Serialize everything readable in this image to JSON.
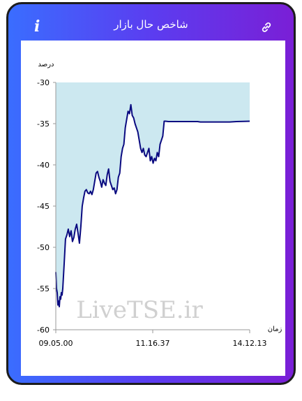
{
  "header": {
    "title": "شاخص حال بازار",
    "info_icon": "info-icon",
    "link_icon": "link-icon"
  },
  "colors": {
    "gradient_start": "#3a6dff",
    "gradient_end": "#7a1fd6",
    "line": "#0a0a80",
    "fill": "#cce8f0"
  },
  "chart_data": {
    "type": "area",
    "title": "",
    "ylabel": "درصد",
    "xlabel": "زمان",
    "ylim": [
      -60,
      -30
    ],
    "yticks": [
      -30,
      -35,
      -40,
      -45,
      -50,
      -55,
      -60
    ],
    "xticks": [
      "09.05.00",
      "11.16.37",
      "14.12.13"
    ],
    "watermark": "LiveTSE.ir",
    "grid": false,
    "series": [
      {
        "x": [
          0,
          1,
          2,
          3,
          4,
          5,
          6,
          7,
          8,
          9,
          10,
          12,
          14,
          16,
          18,
          20,
          22,
          24,
          26,
          28,
          30,
          32,
          34,
          36,
          38,
          40,
          42,
          44,
          46,
          48,
          50,
          52,
          54,
          56,
          58,
          60,
          62,
          64,
          66,
          68,
          70,
          72,
          74,
          76,
          78,
          80,
          82,
          84,
          86,
          88,
          90,
          92,
          94,
          96,
          98,
          100,
          102,
          104,
          106,
          108,
          110,
          112,
          114,
          116,
          118,
          120,
          122,
          124,
          126,
          128,
          130,
          132,
          134,
          136,
          138,
          140,
          142,
          144,
          146,
          148,
          150,
          152,
          154,
          156,
          158,
          160,
          162,
          164,
          166,
          168,
          170,
          172,
          174,
          176,
          178,
          180,
          182,
          184,
          186,
          188,
          190,
          192,
          194,
          196,
          198,
          200,
          204,
          208,
          212,
          216,
          220,
          230,
          240,
          250,
          260,
          270,
          279
        ],
        "y": [
          -53.0,
          -55.0,
          -55.5,
          -57.0,
          -56.5,
          -57.2,
          -56.0,
          -56.3,
          -55.5,
          -55.8,
          -55.0,
          -52.0,
          -49.0,
          -48.5,
          -47.8,
          -48.7,
          -48.0,
          -49.3,
          -48.8,
          -47.8,
          -47.2,
          -48.3,
          -49.5,
          -47.5,
          -45.0,
          -44.0,
          -43.2,
          -43.0,
          -43.4,
          -43.5,
          -43.2,
          -43.6,
          -43.0,
          -42.0,
          -41.0,
          -40.8,
          -41.5,
          -42.0,
          -42.7,
          -41.8,
          -42.2,
          -42.5,
          -41.2,
          -40.5,
          -42.0,
          -42.5,
          -43.0,
          -42.8,
          -43.5,
          -43.0,
          -41.5,
          -41.0,
          -39.0,
          -38.0,
          -37.5,
          -35.5,
          -34.5,
          -33.5,
          -33.8,
          -32.7,
          -34.0,
          -34.3,
          -35.0,
          -35.5,
          -36.0,
          -37.0,
          -38.0,
          -38.5,
          -38.0,
          -38.8,
          -39.0,
          -38.5,
          -38.0,
          -39.5,
          -39.0,
          -39.8,
          -39.2,
          -39.5,
          -38.5,
          -39.0,
          -37.5,
          -37.0,
          -36.5,
          -34.7,
          -34.7,
          -34.72,
          -34.75,
          -34.75,
          -34.75,
          -34.75,
          -34.75,
          -34.75,
          -34.75,
          -34.75,
          -34.75,
          -34.75,
          -34.75,
          -34.75,
          -34.75,
          -34.75,
          -34.75,
          -34.75,
          -34.75,
          -34.75,
          -34.75,
          -34.75,
          -34.75,
          -34.8,
          -34.8,
          -34.8,
          -34.8,
          -34.8,
          -34.8,
          -34.8,
          -34.75,
          -34.72,
          -34.7
        ]
      }
    ]
  }
}
